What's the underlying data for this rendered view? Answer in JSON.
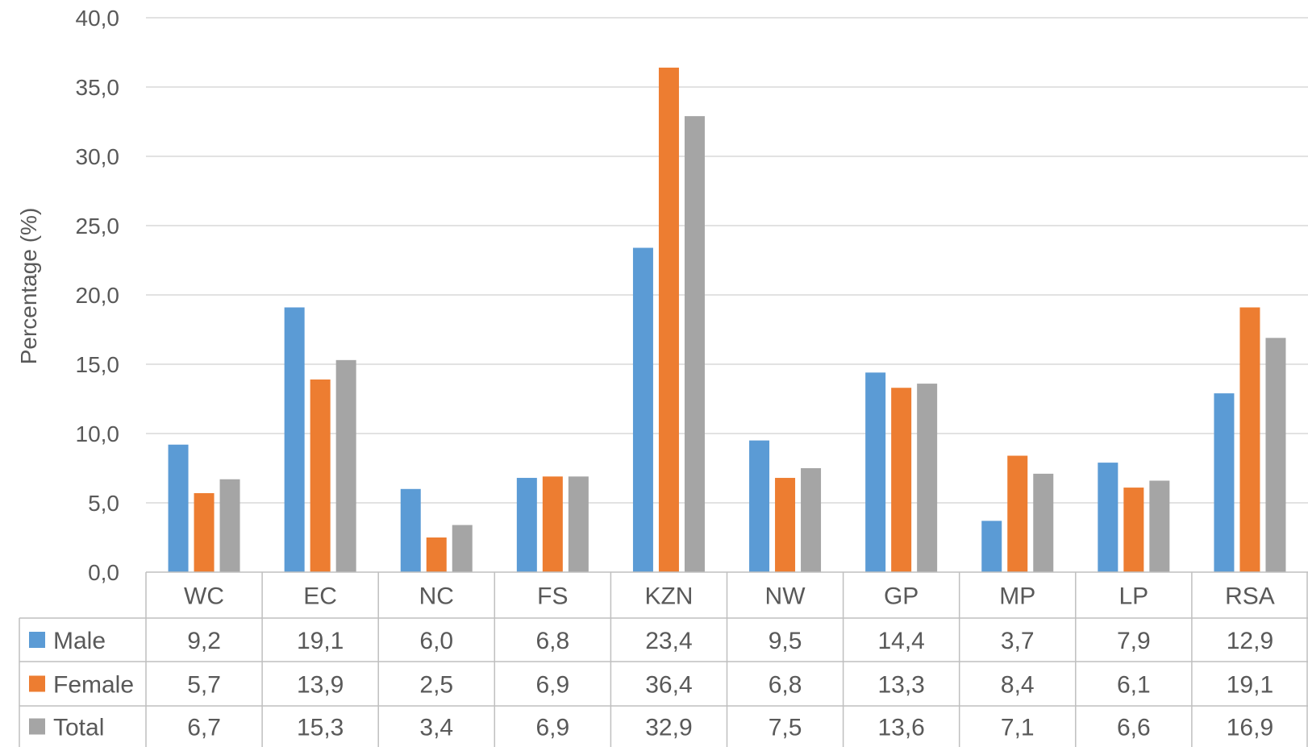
{
  "chart_data": {
    "type": "bar",
    "ylabel": "Percentage (%)",
    "ylim": [
      0,
      40
    ],
    "yticks": [
      "0,0",
      "5,0",
      "10,0",
      "15,0",
      "20,0",
      "25,0",
      "30,0",
      "35,0",
      "40,0"
    ],
    "grid": true,
    "legend": "data-table",
    "categories": [
      "WC",
      "EC",
      "NC",
      "FS",
      "KZN",
      "NW",
      "GP",
      "MP",
      "LP",
      "RSA"
    ],
    "series": [
      {
        "name": "Male",
        "color": "#5b9bd5",
        "values": [
          9.2,
          19.1,
          6.0,
          6.8,
          23.4,
          9.5,
          14.4,
          3.7,
          7.9,
          12.9
        ],
        "labels": [
          "9,2",
          "19,1",
          "6,0",
          "6,8",
          "23,4",
          "9,5",
          "14,4",
          "3,7",
          "7,9",
          "12,9"
        ]
      },
      {
        "name": "Female",
        "color": "#ed7d31",
        "values": [
          5.7,
          13.9,
          2.5,
          6.9,
          36.4,
          6.8,
          13.3,
          8.4,
          6.1,
          19.1
        ],
        "labels": [
          "5,7",
          "13,9",
          "2,5",
          "6,9",
          "36,4",
          "6,8",
          "13,3",
          "8,4",
          "6,1",
          "19,1"
        ]
      },
      {
        "name": "Total",
        "color": "#a5a5a5",
        "values": [
          6.7,
          15.3,
          3.4,
          6.9,
          32.9,
          7.5,
          13.6,
          7.1,
          6.6,
          16.9
        ],
        "labels": [
          "6,7",
          "15,3",
          "3,4",
          "6,9",
          "32,9",
          "7,5",
          "13,6",
          "7,1",
          "6,6",
          "16,9"
        ]
      }
    ]
  }
}
